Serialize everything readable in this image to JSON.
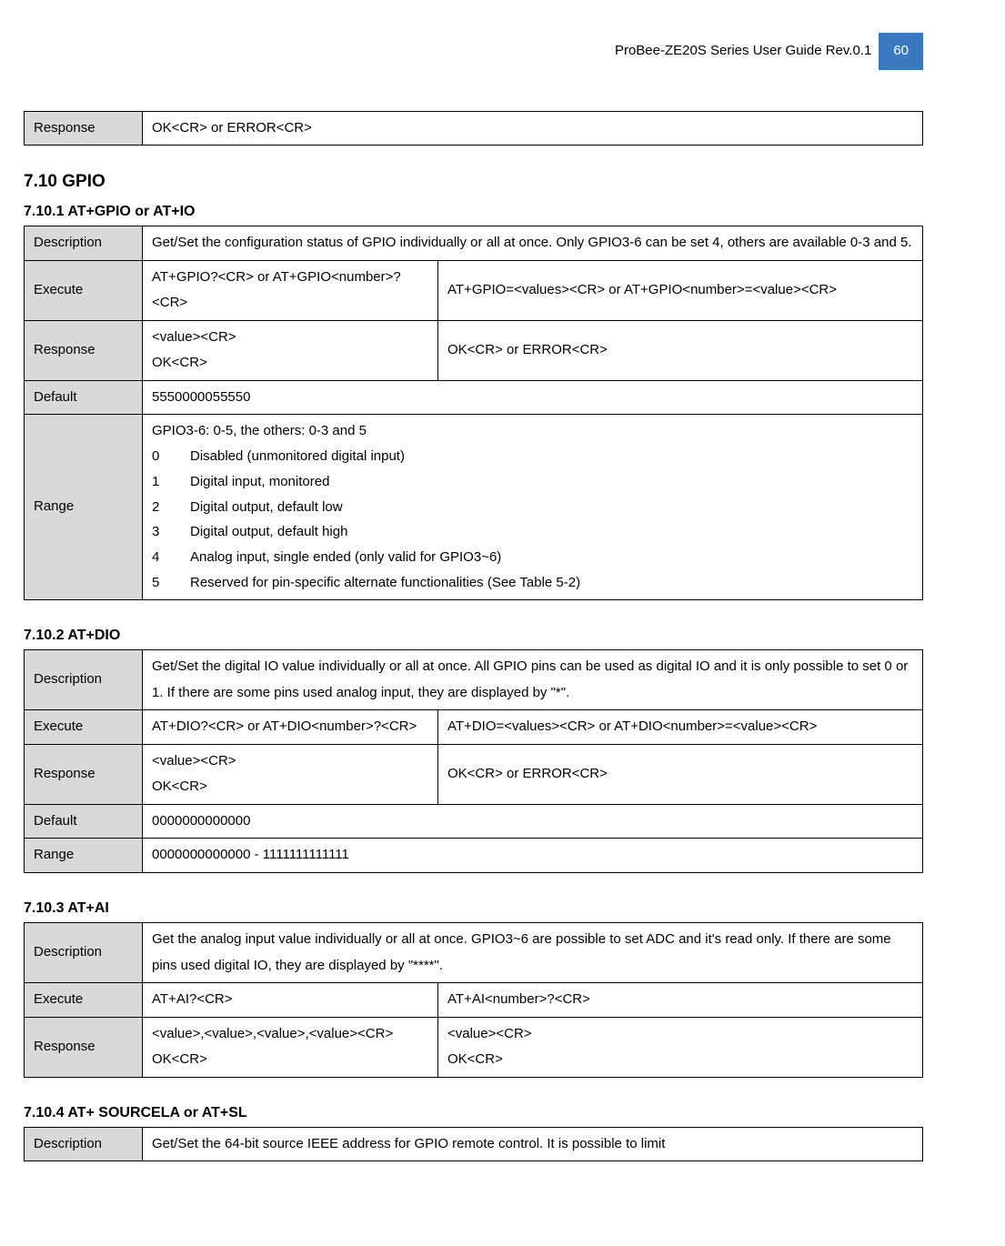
{
  "header": {
    "title": "ProBee-ZE20S Series User Guide Rev.0.1",
    "page": "60"
  },
  "t0": {
    "response_label": "Response",
    "response_value": "OK<CR> or ERROR<CR>"
  },
  "s710": {
    "heading": "7.10    GPIO"
  },
  "s7101": {
    "heading": "7.10.1   AT+GPIO or AT+IO",
    "description_label": "Description",
    "description": "Get/Set the configuration status of GPIO individually or all at once. Only GPIO3-6 can be set 4, others are available 0-3 and 5.",
    "execute_label": "Execute",
    "execute_c1": "AT+GPIO?<CR> or AT+GPIO<number>?<CR>",
    "execute_c2": "AT+GPIO=<values><CR> or AT+GPIO<number>=<value><CR>",
    "response_label": "Response",
    "response_c1": "<value><CR>\nOK<CR>",
    "response_c2": "OK<CR> or ERROR<CR>",
    "default_label": "Default",
    "default_value": "5550000055550",
    "range_label": "Range",
    "range_intro": "GPIO3-6: 0-5, the others: 0-3 and 5",
    "range_items": [
      {
        "idx": "0",
        "txt": "Disabled (unmonitored digital input)"
      },
      {
        "idx": "1",
        "txt": "Digital input, monitored"
      },
      {
        "idx": "2",
        "txt": "Digital output, default low"
      },
      {
        "idx": "3",
        "txt": "Digital output, default high"
      },
      {
        "idx": "4",
        "txt": "Analog input, single ended (only valid for GPIO3~6)"
      },
      {
        "idx": "5",
        "txt": "Reserved for pin-specific alternate functionalities (See Table 5-2)"
      }
    ]
  },
  "s7102": {
    "heading": "7.10.2   AT+DIO",
    "description_label": "Description",
    "description": "Get/Set the digital IO value individually or all at once. All GPIO pins can be used as digital IO and it is only possible to set 0 or 1. If there are some pins used analog input, they are displayed by \"*\".",
    "execute_label": "Execute",
    "execute_c1": "AT+DIO?<CR> or AT+DIO<number>?<CR>",
    "execute_c2": "AT+DIO=<values><CR> or AT+DIO<number>=<value><CR>",
    "response_label": "Response",
    "response_c1": "<value><CR>\nOK<CR>",
    "response_c2": "OK<CR> or ERROR<CR>",
    "default_label": "Default",
    "default_value": "0000000000000",
    "range_label": "Range",
    "range_value": "0000000000000 - 1111111111111"
  },
  "s7103": {
    "heading": "7.10.3   AT+AI",
    "description_label": "Description",
    "description": "Get the analog input value individually or all at once. GPIO3~6 are possible to set ADC and it's read only. If there are some pins used digital IO, they are displayed by \"****\".",
    "execute_label": "Execute",
    "execute_c1": "AT+AI?<CR>",
    "execute_c2": "AT+AI<number>?<CR>",
    "response_label": "Response",
    "response_c1": "<value>,<value>,<value>,<value><CR>\nOK<CR>",
    "response_c2": "<value><CR>\nOK<CR>"
  },
  "s7104": {
    "heading": "7.10.4   AT+ SOURCELA or AT+SL",
    "description_label": "Description",
    "description": "Get/Set the 64-bit source IEEE address for GPIO remote control. It is possible to limit"
  }
}
